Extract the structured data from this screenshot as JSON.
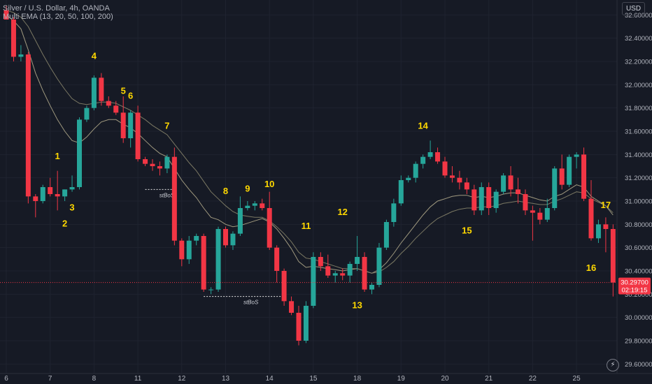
{
  "header": {
    "title": "Silver / U.S. Dollar, 4h, OANDA",
    "indicator": "Multi EMA (13, 20, 50, 100, 200)"
  },
  "price_scale": {
    "currency": "USD"
  },
  "icons": {
    "flash": "lightning-icon"
  },
  "colors": {
    "up": "#26a69a",
    "down": "#f23645",
    "ema_fast": "#b9b08f",
    "ema_slow": "#8d8a6f",
    "label": "#ffd800"
  },
  "chart_data": {
    "type": "candlestick",
    "title": "Silver / U.S. Dollar, 4h, OANDA",
    "ylim": [
      29.56,
      32.68
    ],
    "yticks": [
      29.6,
      29.8,
      30.0,
      30.2,
      30.4,
      30.6,
      30.8,
      31.0,
      31.2,
      31.4,
      31.6,
      31.8,
      32.0,
      32.2,
      32.4,
      32.6
    ],
    "ytick_labels": [
      "29.60000",
      "29.80000",
      "30.00000",
      "30.20000",
      "30.40000",
      "30.60000",
      "30.80000",
      "31.00000",
      "31.20000",
      "31.40000",
      "31.60000",
      "31.80000",
      "32.00000",
      "32.20000",
      "32.40000",
      "32.60000"
    ],
    "x_labels": [
      {
        "label": "6",
        "bar": 0
      },
      {
        "label": "7",
        "bar": 6
      },
      {
        "label": "8",
        "bar": 12
      },
      {
        "label": "11",
        "bar": 18
      },
      {
        "label": "12",
        "bar": 24
      },
      {
        "label": "13",
        "bar": 30
      },
      {
        "label": "14",
        "bar": 36
      },
      {
        "label": "15",
        "bar": 42
      },
      {
        "label": "18",
        "bar": 48
      },
      {
        "label": "19",
        "bar": 54
      },
      {
        "label": "20",
        "bar": 60
      },
      {
        "label": "21",
        "bar": 66
      },
      {
        "label": "22",
        "bar": 72
      },
      {
        "label": "25",
        "bar": 78
      }
    ],
    "candles": [
      [
        32.64,
        32.68,
        32.58,
        32.56
      ],
      [
        32.56,
        32.58,
        32.2,
        32.24
      ],
      [
        32.24,
        32.34,
        32.2,
        32.26
      ],
      [
        32.26,
        32.28,
        30.98,
        31.04
      ],
      [
        31.04,
        31.06,
        30.86,
        31.0
      ],
      [
        31.0,
        31.14,
        30.98,
        31.12
      ],
      [
        31.12,
        31.2,
        31.04,
        31.06
      ],
      [
        31.06,
        31.26,
        30.92,
        31.04
      ],
      [
        31.04,
        31.1,
        31.0,
        31.1
      ],
      [
        31.1,
        31.22,
        31.08,
        31.12
      ],
      [
        31.12,
        31.72,
        31.1,
        31.7
      ],
      [
        31.7,
        31.82,
        31.68,
        31.8
      ],
      [
        31.8,
        32.08,
        31.78,
        32.06
      ],
      [
        32.06,
        32.1,
        31.82,
        31.86
      ],
      [
        31.86,
        31.9,
        31.8,
        31.82
      ],
      [
        31.82,
        31.86,
        31.74,
        31.76
      ],
      [
        31.76,
        31.9,
        31.5,
        31.54
      ],
      [
        31.54,
        31.78,
        31.46,
        31.76
      ],
      [
        31.76,
        31.82,
        31.34,
        31.36
      ],
      [
        31.36,
        31.38,
        31.3,
        31.32
      ],
      [
        31.32,
        31.36,
        31.26,
        31.3
      ],
      [
        31.3,
        31.34,
        31.22,
        31.28
      ],
      [
        31.28,
        31.4,
        31.24,
        31.38
      ],
      [
        31.38,
        31.46,
        30.62,
        30.66
      ],
      [
        30.66,
        30.68,
        30.44,
        30.5
      ],
      [
        30.5,
        30.7,
        30.46,
        30.66
      ],
      [
        30.66,
        30.72,
        30.62,
        30.7
      ],
      [
        30.7,
        30.72,
        30.22,
        30.24
      ],
      [
        30.24,
        30.26,
        30.2,
        30.24
      ],
      [
        30.24,
        30.78,
        30.22,
        30.76
      ],
      [
        30.76,
        30.78,
        30.6,
        30.62
      ],
      [
        30.62,
        30.74,
        30.58,
        30.72
      ],
      [
        30.72,
        31.04,
        30.7,
        30.94
      ],
      [
        30.94,
        31.0,
        30.92,
        30.96
      ],
      [
        30.96,
        31.0,
        30.92,
        30.98
      ],
      [
        30.98,
        31.02,
        30.92,
        30.94
      ],
      [
        30.94,
        31.08,
        30.58,
        30.6
      ],
      [
        30.6,
        30.62,
        30.3,
        30.4
      ],
      [
        30.4,
        30.42,
        30.1,
        30.14
      ],
      [
        30.14,
        30.18,
        30.02,
        30.04
      ],
      [
        30.04,
        30.1,
        29.76,
        29.8
      ],
      [
        29.8,
        30.14,
        29.78,
        30.1
      ],
      [
        30.1,
        30.56,
        30.08,
        30.52
      ],
      [
        30.52,
        30.56,
        30.4,
        30.44
      ],
      [
        30.44,
        30.54,
        30.34,
        30.36
      ],
      [
        30.36,
        30.4,
        30.3,
        30.38
      ],
      [
        30.38,
        30.42,
        30.32,
        30.36
      ],
      [
        30.36,
        30.48,
        30.3,
        30.46
      ],
      [
        30.46,
        30.7,
        30.4,
        30.52
      ],
      [
        30.52,
        30.56,
        30.22,
        30.24
      ],
      [
        30.24,
        30.3,
        30.2,
        30.28
      ],
      [
        30.28,
        30.64,
        30.26,
        30.6
      ],
      [
        30.6,
        30.84,
        30.58,
        30.82
      ],
      [
        30.82,
        31.02,
        30.78,
        30.98
      ],
      [
        30.98,
        31.22,
        30.96,
        31.18
      ],
      [
        31.18,
        31.22,
        31.16,
        31.2
      ],
      [
        31.2,
        31.34,
        31.16,
        31.32
      ],
      [
        31.32,
        31.4,
        31.28,
        31.38
      ],
      [
        31.38,
        31.52,
        31.36,
        31.42
      ],
      [
        31.42,
        31.46,
        31.32,
        31.34
      ],
      [
        31.34,
        31.38,
        31.2,
        31.22
      ],
      [
        31.22,
        31.3,
        31.16,
        31.2
      ],
      [
        31.2,
        31.26,
        31.1,
        31.16
      ],
      [
        31.16,
        31.2,
        31.06,
        31.1
      ],
      [
        31.1,
        31.14,
        30.88,
        30.92
      ],
      [
        30.92,
        31.16,
        30.88,
        31.12
      ],
      [
        31.12,
        31.16,
        30.88,
        30.94
      ],
      [
        30.94,
        31.1,
        30.9,
        31.08
      ],
      [
        31.08,
        31.24,
        31.06,
        31.22
      ],
      [
        31.22,
        31.3,
        31.04,
        31.1
      ],
      [
        31.1,
        31.2,
        30.98,
        31.06
      ],
      [
        31.06,
        31.1,
        30.88,
        30.92
      ],
      [
        30.92,
        30.96,
        30.66,
        30.9
      ],
      [
        30.9,
        30.94,
        30.8,
        30.84
      ],
      [
        30.84,
        31.02,
        30.82,
        30.94
      ],
      [
        30.94,
        31.3,
        30.92,
        31.28
      ],
      [
        31.28,
        31.4,
        31.1,
        31.14
      ],
      [
        31.14,
        31.4,
        31.12,
        31.38
      ],
      [
        31.38,
        31.42,
        31.28,
        31.4
      ],
      [
        31.4,
        31.46,
        31.0,
        31.02
      ],
      [
        31.02,
        31.18,
        30.66,
        30.68
      ],
      [
        30.68,
        30.84,
        30.64,
        30.8
      ],
      [
        30.8,
        30.86,
        30.56,
        30.76
      ],
      [
        30.76,
        30.8,
        30.18,
        30.3
      ]
    ],
    "ema_fast": [
      32.6,
      32.55,
      32.48,
      32.3,
      32.1,
      31.95,
      31.82,
      31.7,
      31.6,
      31.52,
      31.5,
      31.55,
      31.62,
      31.68,
      31.7,
      31.7,
      31.66,
      31.63,
      31.58,
      31.52,
      31.46,
      31.41,
      31.38,
      31.28,
      31.18,
      31.1,
      31.03,
      30.94,
      30.86,
      30.84,
      30.8,
      30.78,
      30.79,
      30.81,
      30.83,
      30.85,
      30.82,
      30.76,
      30.68,
      30.59,
      30.48,
      30.43,
      30.44,
      30.43,
      30.42,
      30.41,
      30.4,
      30.41,
      30.42,
      30.4,
      30.38,
      30.41,
      30.47,
      30.55,
      30.64,
      30.72,
      30.8,
      30.88,
      30.95,
      31.0,
      31.02,
      31.04,
      31.05,
      31.05,
      31.03,
      31.04,
      31.03,
      31.04,
      31.06,
      31.07,
      31.07,
      31.05,
      31.03,
      31.01,
      31.0,
      31.04,
      31.06,
      31.1,
      31.14,
      31.12,
      31.04,
      31.0,
      30.96,
      30.88
    ],
    "ema_slow": [
      32.64,
      32.62,
      32.58,
      32.5,
      32.38,
      32.26,
      32.15,
      32.05,
      31.96,
      31.88,
      31.84,
      31.83,
      31.84,
      31.85,
      31.85,
      31.84,
      31.81,
      31.78,
      31.74,
      31.7,
      31.65,
      31.61,
      31.57,
      31.49,
      31.41,
      31.33,
      31.26,
      31.17,
      31.08,
      31.02,
      30.96,
      30.91,
      30.88,
      30.87,
      30.86,
      30.86,
      30.83,
      30.78,
      30.72,
      30.65,
      30.56,
      30.51,
      30.5,
      30.48,
      30.46,
      30.44,
      30.42,
      30.42,
      30.42,
      30.4,
      30.38,
      30.39,
      30.43,
      30.48,
      30.55,
      30.61,
      30.68,
      30.74,
      30.8,
      30.85,
      30.88,
      30.91,
      30.93,
      30.94,
      30.94,
      30.95,
      30.95,
      30.96,
      30.98,
      30.99,
      31.0,
      30.99,
      30.98,
      30.97,
      30.97,
      31.0,
      31.02,
      31.05,
      31.08,
      31.07,
      31.02,
      30.99,
      30.96,
      30.9
    ]
  },
  "annotations": [
    {
      "text": "1",
      "bar": 7,
      "y": 31.36
    },
    {
      "text": "2",
      "bar": 8,
      "y": 30.78
    },
    {
      "text": "3",
      "bar": 9,
      "y": 30.92
    },
    {
      "text": "4",
      "bar": 12,
      "y": 32.22
    },
    {
      "text": "5",
      "bar": 16,
      "y": 31.92
    },
    {
      "text": "6",
      "bar": 17,
      "y": 31.88
    },
    {
      "text": "7",
      "bar": 22,
      "y": 31.62
    },
    {
      "text": "8",
      "bar": 30,
      "y": 31.06
    },
    {
      "text": "9",
      "bar": 33,
      "y": 31.08
    },
    {
      "text": "10",
      "bar": 36,
      "y": 31.12
    },
    {
      "text": "11",
      "bar": 41,
      "y": 30.76
    },
    {
      "text": "12",
      "bar": 46,
      "y": 30.88
    },
    {
      "text": "13",
      "bar": 48,
      "y": 30.08
    },
    {
      "text": "14",
      "bar": 57,
      "y": 31.62
    },
    {
      "text": "15",
      "bar": 63,
      "y": 30.72
    },
    {
      "text": "16",
      "bar": 80,
      "y": 30.4
    },
    {
      "text": "17",
      "bar": 82,
      "y": 30.94
    }
  ],
  "bos_lines": [
    {
      "label": "stBoS",
      "start": 19,
      "end": 23,
      "y": 31.1
    },
    {
      "label": "stBoS",
      "start": 27,
      "end": 38,
      "y": 30.18
    }
  ],
  "last_price": {
    "value": "30.29700",
    "countdown": "02:19:15",
    "y": 30.3
  }
}
